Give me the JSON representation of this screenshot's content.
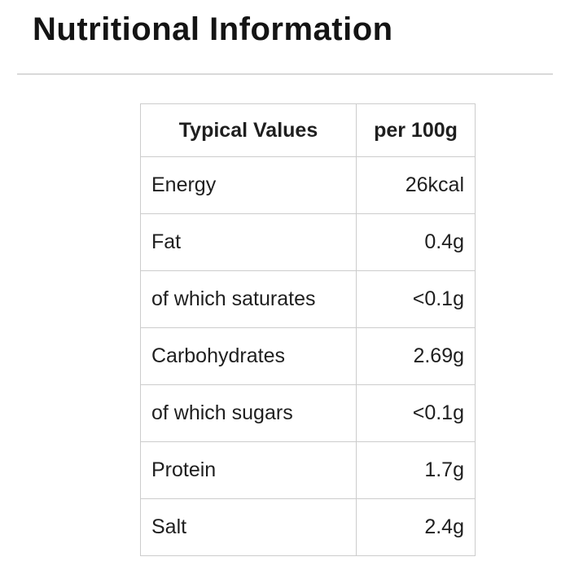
{
  "page": {
    "title": "Nutritional Information"
  },
  "colors": {
    "divider": "#d9d9d9",
    "table_border": "#cccccc",
    "text": "#1f1f1f"
  },
  "table": {
    "headers": [
      "Typical Values",
      "per 100g"
    ],
    "rows": [
      {
        "label": "Energy",
        "value": "26kcal"
      },
      {
        "label": "Fat",
        "value": "0.4g"
      },
      {
        "label": "of which saturates",
        "value": "<0.1g"
      },
      {
        "label": "Carbohydrates",
        "value": "2.69g"
      },
      {
        "label": "of which sugars",
        "value": "<0.1g"
      },
      {
        "label": "Protein",
        "value": "1.7g"
      },
      {
        "label": "Salt",
        "value": "2.4g"
      }
    ]
  }
}
